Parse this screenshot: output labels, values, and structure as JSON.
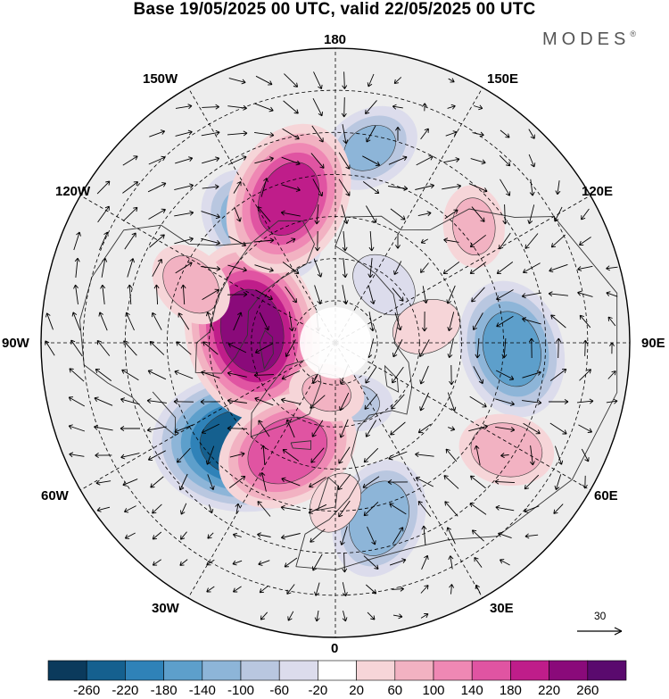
{
  "title": "Base 19/05/2025 00 UTC, valid 22/05/2025 00 UTC",
  "brand": "MODES",
  "brand_mark": "®",
  "longitude_labels": {
    "n180": "180",
    "w150": "150W",
    "e150": "150E",
    "w120": "120W",
    "e120": "120E",
    "w90": "90W",
    "e90": "90E",
    "w60": "60W",
    "e60": "60E",
    "w30": "30W",
    "e30": "30E",
    "n0": "0"
  },
  "vector_reference": {
    "label": "30"
  },
  "colorbar": {
    "labels": [
      "-260",
      "-220",
      "-180",
      "-140",
      "-100",
      "-60",
      "-20",
      "20",
      "60",
      "100",
      "140",
      "180",
      "220",
      "260"
    ],
    "colors": [
      "#0b3a5c",
      "#15608f",
      "#2f82b8",
      "#5d9fcb",
      "#8db5d8",
      "#b9c7e0",
      "#dcdcec",
      "#ffffff",
      "#f6d5d8",
      "#f2b2c2",
      "#ef88b4",
      "#e054a2",
      "#bf1d8a",
      "#8a0a7a",
      "#5a0a6e"
    ]
  },
  "anomalies": [
    {
      "lon": -42,
      "lat": 58,
      "value": -240
    },
    {
      "lon": -148,
      "lat": 57,
      "value": -150
    },
    {
      "lon": 88,
      "lat": 48,
      "value": -160
    },
    {
      "lon": 14,
      "lat": 47,
      "value": -130
    },
    {
      "lon": 170,
      "lat": 43,
      "value": -100
    },
    {
      "lon": 18,
      "lat": 75,
      "value": -60
    },
    {
      "lon": 140,
      "lat": 72,
      "value": -50
    },
    {
      "lon": -98,
      "lat": 70,
      "value": 230
    },
    {
      "lon": -162,
      "lat": 54,
      "value": 190
    },
    {
      "lon": -24,
      "lat": 62,
      "value": 170
    },
    {
      "lon": 58,
      "lat": 42,
      "value": 90
    },
    {
      "lon": -112,
      "lat": 53,
      "value": 80
    },
    {
      "lon": 130,
      "lat": 47,
      "value": 70
    },
    {
      "lon": 0,
      "lat": 52,
      "value": 40
    },
    {
      "lon": 100,
      "lat": 68,
      "value": 50
    },
    {
      "lon": -10,
      "lat": 78,
      "value": 60
    }
  ]
}
